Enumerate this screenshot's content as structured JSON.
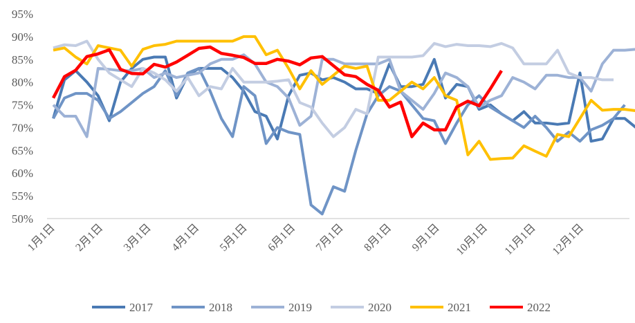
{
  "chart_data": {
    "type": "line",
    "title": "",
    "xlabel": "",
    "ylabel": "",
    "ylim": [
      50,
      95
    ],
    "y_ticks": [
      "50%",
      "55%",
      "60%",
      "65%",
      "70%",
      "75%",
      "80%",
      "85%",
      "90%",
      "95%"
    ],
    "x_ticks": [
      "1月1日",
      "2月1日",
      "3月1日",
      "4月1日",
      "5月1日",
      "6月1日",
      "7月1日",
      "8月1日",
      "9月1日",
      "10月1日",
      "11月1日",
      "12月1日"
    ],
    "x_unit": "week of year",
    "grid": false,
    "legend": "bottom",
    "series": [
      {
        "name": "2017",
        "color": "#4a7ab4",
        "values": [
          72,
          80.5,
          82.5,
          80,
          77,
          71.5,
          80,
          83,
          85,
          85.5,
          85.5,
          76.5,
          81.5,
          83,
          83,
          83,
          81,
          78,
          73.5,
          72.5,
          67.5,
          77,
          81.5,
          82,
          80.5,
          81,
          80,
          78.5,
          78.5,
          77.5,
          84,
          79,
          79,
          79.5,
          85,
          76.5,
          79.5,
          79,
          74,
          75,
          73,
          71.5,
          73.5,
          71,
          71,
          70.7,
          71,
          82,
          67,
          67.5,
          72,
          72,
          70,
          70,
          75
        ]
      },
      {
        "name": "2018",
        "color": "#6f94c6",
        "values": [
          72,
          76.5,
          77.5,
          77.5,
          76,
          72,
          73.5,
          75.5,
          77.5,
          79,
          82.5,
          77,
          82,
          83,
          78,
          72,
          68,
          79,
          77,
          66.5,
          70,
          69,
          68.5,
          53,
          51,
          57,
          56,
          65,
          73,
          77,
          79,
          78,
          75,
          72,
          71.5,
          66.5,
          71,
          75,
          77,
          74.5,
          73,
          71.5,
          70,
          72.5,
          70,
          67,
          69,
          67,
          69.5,
          70.5,
          72,
          75
        ]
      },
      {
        "name": "2019",
        "color": "#9db2d6",
        "values": [
          75,
          72.5,
          72.5,
          68,
          83,
          82.8,
          82.5,
          82.5,
          83,
          81,
          82,
          81,
          81.5,
          82,
          84,
          85,
          85,
          86,
          84,
          80,
          79,
          76.5,
          70.5,
          72.5,
          85,
          85,
          84,
          84,
          84,
          84,
          85,
          78,
          76,
          74,
          77.5,
          82,
          81,
          79,
          74.5,
          76,
          77,
          81,
          80,
          78.5,
          81.5,
          81.5,
          81,
          81,
          78,
          84,
          87,
          87,
          87.2,
          87.5,
          88,
          87.8
        ]
      },
      {
        "name": "2020",
        "color": "#c3cde2",
        "values": [
          87.5,
          88.2,
          88,
          89,
          85,
          82,
          80.5,
          79,
          83,
          82,
          80.5,
          78,
          81,
          77,
          79,
          78.5,
          83,
          80,
          80,
          80,
          80.2,
          80.5,
          75.5,
          74.5,
          71,
          68,
          70,
          74,
          73,
          85.5,
          85.5,
          85.5,
          85.5,
          85.8,
          88.5,
          87.8,
          88.3,
          88,
          88,
          87.8,
          88.5,
          87.5,
          84,
          84,
          84,
          87,
          82,
          81,
          81,
          80.5,
          80.5
        ]
      },
      {
        "name": "2021",
        "color": "#ffc000",
        "values": [
          87,
          87.5,
          85.5,
          84,
          88,
          87.5,
          87,
          83.5,
          87.2,
          88,
          88.3,
          89,
          89,
          89,
          89,
          89,
          89,
          90,
          90,
          86,
          87,
          83,
          78.5,
          82.5,
          79.5,
          81.5,
          83.5,
          83,
          83.5,
          76,
          76,
          78,
          80,
          78.5,
          81,
          77,
          76,
          64,
          67,
          63,
          63.2,
          63.3,
          66,
          64.8,
          63.7,
          68.5,
          68,
          72,
          76,
          73.8,
          74,
          74,
          73.7
        ]
      },
      {
        "name": "2022",
        "color": "#ff0000",
        "values": [
          76.5,
          81.2,
          82.6,
          85.6,
          86.2,
          87.1,
          82.8,
          81.9,
          81.8,
          83.9,
          83.3,
          84.4,
          85.9,
          87.4,
          87.7,
          86.3,
          85.9,
          85.4,
          84.1,
          84.1,
          85,
          84.6,
          83.8,
          85.3,
          85.6,
          83.6,
          81.6,
          81.2,
          79.5,
          78.2,
          74.5,
          75.6,
          68,
          71,
          69.5,
          69.5,
          74.5,
          75.8,
          74.8,
          78.5,
          82.5
        ]
      }
    ]
  }
}
